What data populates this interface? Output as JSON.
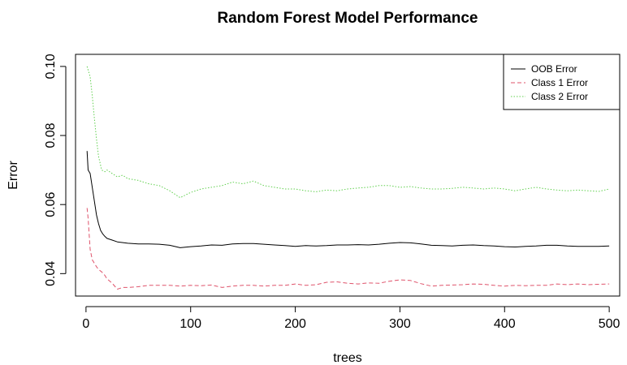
{
  "chart_data": {
    "type": "line",
    "title": "Random Forest Model Performance",
    "xlabel": "trees",
    "ylabel": "Error",
    "xlim": [
      -10,
      510
    ],
    "ylim": [
      0.0335,
      0.1035
    ],
    "x_ticks": [
      0,
      100,
      200,
      300,
      400,
      500
    ],
    "y_ticks": [
      0.04,
      0.06,
      0.08,
      0.1
    ],
    "x_tick_labels": [
      "0",
      "100",
      "200",
      "300",
      "400",
      "500"
    ],
    "y_tick_labels": [
      "0.04",
      "0.06",
      "0.08",
      "0.10"
    ],
    "legend_position": "top-right",
    "grid": false,
    "series": [
      {
        "name": "OOB Error",
        "color": "#000000",
        "line_style": "solid",
        "points": [
          [
            1,
            0.0755
          ],
          [
            2,
            0.07
          ],
          [
            4,
            0.069
          ],
          [
            6,
            0.065
          ],
          [
            8,
            0.061
          ],
          [
            10,
            0.057
          ],
          [
            12,
            0.0545
          ],
          [
            14,
            0.0525
          ],
          [
            16,
            0.0515
          ],
          [
            18,
            0.0508
          ],
          [
            20,
            0.0502
          ],
          [
            25,
            0.0497
          ],
          [
            30,
            0.0492
          ],
          [
            40,
            0.0488
          ],
          [
            50,
            0.0486
          ],
          [
            60,
            0.0486
          ],
          [
            70,
            0.0485
          ],
          [
            80,
            0.0482
          ],
          [
            90,
            0.0475
          ],
          [
            100,
            0.0478
          ],
          [
            110,
            0.048
          ],
          [
            120,
            0.0483
          ],
          [
            130,
            0.0482
          ],
          [
            140,
            0.0486
          ],
          [
            150,
            0.0487
          ],
          [
            160,
            0.0487
          ],
          [
            170,
            0.0485
          ],
          [
            180,
            0.0483
          ],
          [
            190,
            0.0481
          ],
          [
            200,
            0.0479
          ],
          [
            210,
            0.0481
          ],
          [
            220,
            0.048
          ],
          [
            230,
            0.0481
          ],
          [
            240,
            0.0483
          ],
          [
            250,
            0.0483
          ],
          [
            260,
            0.0484
          ],
          [
            270,
            0.0483
          ],
          [
            280,
            0.0485
          ],
          [
            290,
            0.0488
          ],
          [
            300,
            0.049
          ],
          [
            310,
            0.0489
          ],
          [
            320,
            0.0486
          ],
          [
            330,
            0.0482
          ],
          [
            340,
            0.0481
          ],
          [
            350,
            0.048
          ],
          [
            360,
            0.0482
          ],
          [
            370,
            0.0483
          ],
          [
            380,
            0.0481
          ],
          [
            390,
            0.048
          ],
          [
            400,
            0.0478
          ],
          [
            410,
            0.0477
          ],
          [
            420,
            0.0479
          ],
          [
            430,
            0.048
          ],
          [
            440,
            0.0482
          ],
          [
            450,
            0.0482
          ],
          [
            460,
            0.048
          ],
          [
            470,
            0.0479
          ],
          [
            480,
            0.0479
          ],
          [
            490,
            0.0479
          ],
          [
            500,
            0.048
          ]
        ]
      },
      {
        "name": "Class 1 Error",
        "color": "#df536b",
        "line_style": "dashed",
        "points": [
          [
            1,
            0.059
          ],
          [
            2,
            0.056
          ],
          [
            4,
            0.047
          ],
          [
            6,
            0.044
          ],
          [
            8,
            0.043
          ],
          [
            10,
            0.042
          ],
          [
            12,
            0.0412
          ],
          [
            15,
            0.0405
          ],
          [
            18,
            0.0395
          ],
          [
            20,
            0.0385
          ],
          [
            25,
            0.0372
          ],
          [
            30,
            0.0355
          ],
          [
            35,
            0.036
          ],
          [
            40,
            0.036
          ],
          [
            50,
            0.0362
          ],
          [
            60,
            0.0366
          ],
          [
            70,
            0.0366
          ],
          [
            80,
            0.0366
          ],
          [
            90,
            0.0364
          ],
          [
            100,
            0.0366
          ],
          [
            110,
            0.0365
          ],
          [
            120,
            0.0367
          ],
          [
            130,
            0.036
          ],
          [
            140,
            0.0364
          ],
          [
            150,
            0.0366
          ],
          [
            160,
            0.0366
          ],
          [
            170,
            0.0364
          ],
          [
            180,
            0.0366
          ],
          [
            190,
            0.0366
          ],
          [
            200,
            0.037
          ],
          [
            210,
            0.0366
          ],
          [
            220,
            0.0368
          ],
          [
            230,
            0.0375
          ],
          [
            240,
            0.0376
          ],
          [
            250,
            0.0372
          ],
          [
            260,
            0.037
          ],
          [
            270,
            0.0373
          ],
          [
            280,
            0.0372
          ],
          [
            290,
            0.0378
          ],
          [
            300,
            0.0382
          ],
          [
            310,
            0.038
          ],
          [
            320,
            0.0371
          ],
          [
            330,
            0.0364
          ],
          [
            340,
            0.0366
          ],
          [
            350,
            0.0367
          ],
          [
            360,
            0.0368
          ],
          [
            370,
            0.037
          ],
          [
            380,
            0.0369
          ],
          [
            390,
            0.0366
          ],
          [
            400,
            0.0364
          ],
          [
            410,
            0.0366
          ],
          [
            420,
            0.0365
          ],
          [
            430,
            0.0366
          ],
          [
            440,
            0.0366
          ],
          [
            450,
            0.037
          ],
          [
            460,
            0.0368
          ],
          [
            470,
            0.037
          ],
          [
            480,
            0.0368
          ],
          [
            490,
            0.0369
          ],
          [
            500,
            0.037
          ]
        ]
      },
      {
        "name": "Class 2 Error",
        "color": "#61d04f",
        "line_style": "dotted",
        "points": [
          [
            1,
            0.1
          ],
          [
            2,
            0.099
          ],
          [
            4,
            0.097
          ],
          [
            6,
            0.0915
          ],
          [
            8,
            0.085
          ],
          [
            10,
            0.079
          ],
          [
            12,
            0.074
          ],
          [
            15,
            0.07
          ],
          [
            18,
            0.0695
          ],
          [
            20,
            0.07
          ],
          [
            25,
            0.069
          ],
          [
            30,
            0.068
          ],
          [
            35,
            0.0685
          ],
          [
            40,
            0.0675
          ],
          [
            50,
            0.067
          ],
          [
            60,
            0.066
          ],
          [
            70,
            0.0655
          ],
          [
            80,
            0.064
          ],
          [
            90,
            0.062
          ],
          [
            100,
            0.0635
          ],
          [
            110,
            0.0645
          ],
          [
            120,
            0.065
          ],
          [
            130,
            0.0655
          ],
          [
            140,
            0.0665
          ],
          [
            150,
            0.066
          ],
          [
            160,
            0.0668
          ],
          [
            170,
            0.0655
          ],
          [
            180,
            0.065
          ],
          [
            190,
            0.0645
          ],
          [
            200,
            0.0645
          ],
          [
            210,
            0.064
          ],
          [
            220,
            0.0637
          ],
          [
            230,
            0.0642
          ],
          [
            240,
            0.064
          ],
          [
            250,
            0.0645
          ],
          [
            260,
            0.0648
          ],
          [
            270,
            0.065
          ],
          [
            280,
            0.0655
          ],
          [
            290,
            0.0655
          ],
          [
            300,
            0.065
          ],
          [
            310,
            0.0652
          ],
          [
            320,
            0.0648
          ],
          [
            330,
            0.0645
          ],
          [
            340,
            0.0645
          ],
          [
            350,
            0.0647
          ],
          [
            360,
            0.065
          ],
          [
            370,
            0.0648
          ],
          [
            380,
            0.0645
          ],
          [
            390,
            0.0648
          ],
          [
            400,
            0.0645
          ],
          [
            410,
            0.064
          ],
          [
            420,
            0.0645
          ],
          [
            430,
            0.065
          ],
          [
            440,
            0.0645
          ],
          [
            450,
            0.0642
          ],
          [
            460,
            0.064
          ],
          [
            470,
            0.0642
          ],
          [
            480,
            0.064
          ],
          [
            490,
            0.0638
          ],
          [
            500,
            0.0645
          ]
        ]
      }
    ]
  }
}
